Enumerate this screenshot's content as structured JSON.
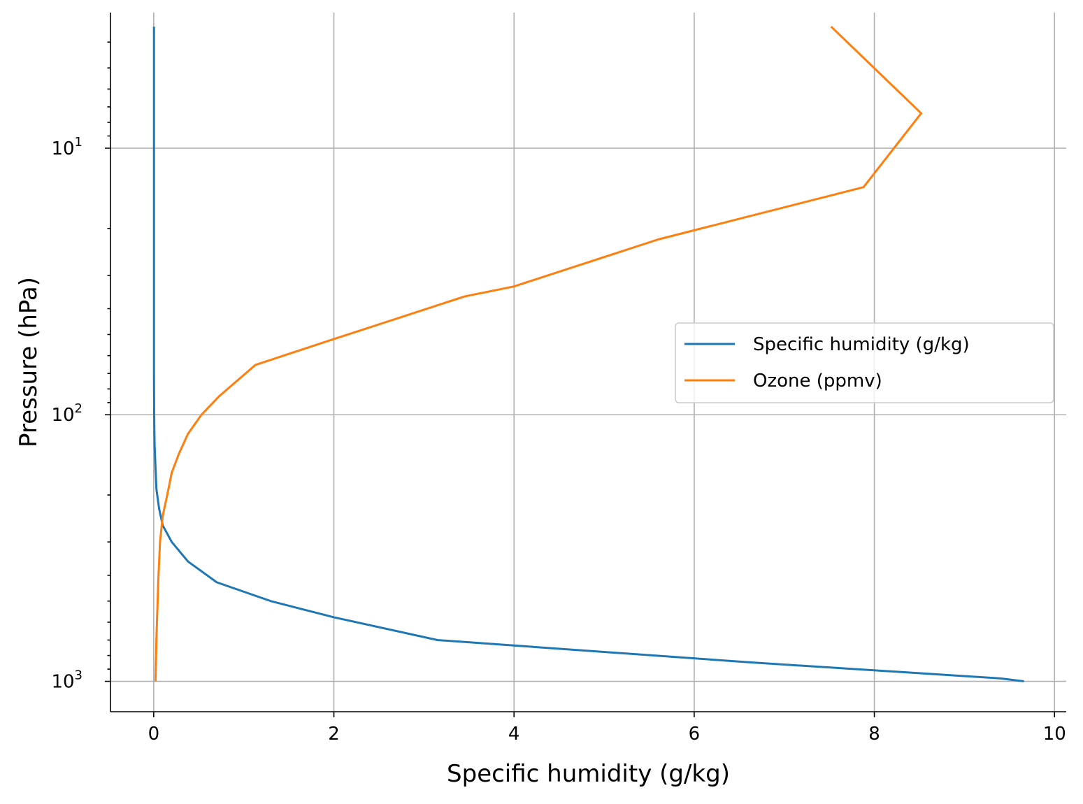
{
  "chart_data": {
    "type": "line",
    "title": "",
    "xlabel": "Specific humidity (g/kg)",
    "ylabel": "Pressure (hPa)",
    "xlim": [
      -0.48,
      10.13
    ],
    "ylim": [
      1300,
      3.1
    ],
    "yscale": "log",
    "y_inverted": true,
    "grid": true,
    "legend_placement": "center-right",
    "x_ticks": [
      "0",
      "2",
      "4",
      "6",
      "8",
      "10"
    ],
    "y_ticks": [
      {
        "base": "10",
        "exp": "1",
        "value": 10
      },
      {
        "base": "10",
        "exp": "2",
        "value": 100
      },
      {
        "base": "10",
        "exp": "3",
        "value": 1000
      }
    ],
    "series": [
      {
        "name": "Specific humidity (g/kg)",
        "color": "#1f77b4",
        "points": [
          [
            9.66,
            1000
          ],
          [
            9.4,
            975
          ],
          [
            6.65,
            850
          ],
          [
            3.15,
            700
          ],
          [
            2.0,
            575
          ],
          [
            1.3,
            500
          ],
          [
            0.7,
            425
          ],
          [
            0.38,
            355
          ],
          [
            0.2,
            300
          ],
          [
            0.1,
            260
          ],
          [
            0.06,
            225
          ],
          [
            0.03,
            190
          ],
          [
            0.01,
            130
          ],
          [
            0.005,
            100
          ],
          [
            0.003,
            70
          ],
          [
            0.003,
            50
          ],
          [
            0.003,
            30
          ],
          [
            0.003,
            20
          ],
          [
            0.003,
            10
          ],
          [
            0.003,
            5
          ],
          [
            0.003,
            3.5
          ]
        ]
      },
      {
        "name": "Ozone (ppmv)",
        "color": "#ff7f0e",
        "points": [
          [
            0.02,
            1000
          ],
          [
            0.03,
            700
          ],
          [
            0.05,
            425
          ],
          [
            0.07,
            300
          ],
          [
            0.1,
            240
          ],
          [
            0.15,
            200
          ],
          [
            0.2,
            165
          ],
          [
            0.28,
            140
          ],
          [
            0.38,
            118
          ],
          [
            0.53,
            100
          ],
          [
            0.73,
            85
          ],
          [
            1.13,
            65
          ],
          [
            2.0,
            52
          ],
          [
            3.45,
            36
          ],
          [
            4.0,
            33
          ],
          [
            5.6,
            22
          ],
          [
            7.88,
            14
          ],
          [
            8.52,
            7.4
          ],
          [
            7.52,
            3.5
          ]
        ]
      }
    ]
  }
}
